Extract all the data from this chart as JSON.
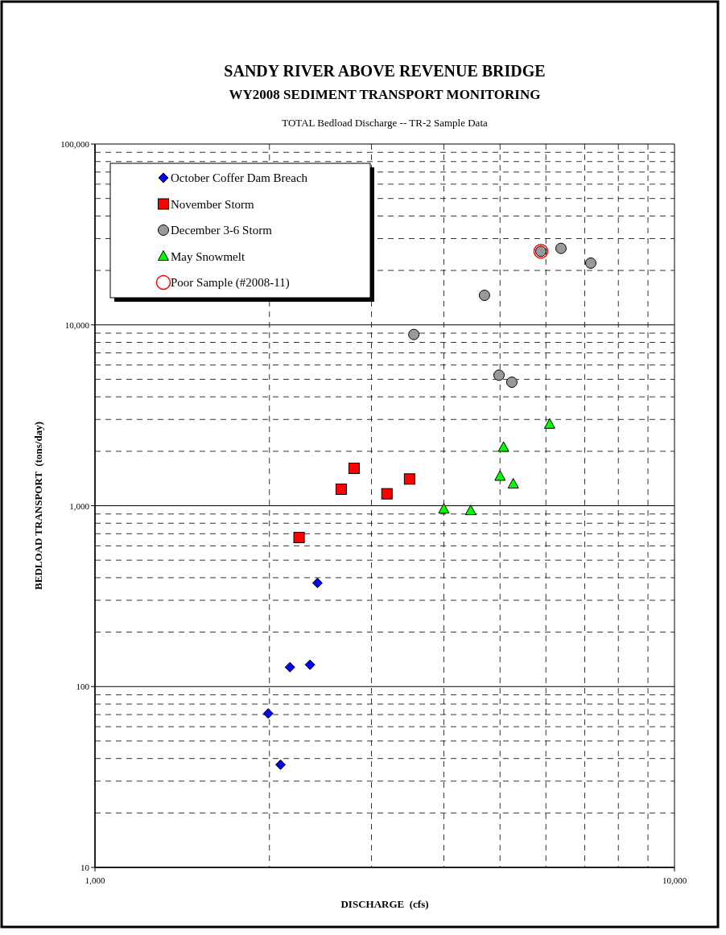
{
  "chart_data": {
    "type": "scatter",
    "title": "SANDY RIVER ABOVE REVENUE BRIDGE",
    "subtitle": "WY2008 SEDIMENT TRANSPORT MONITORING",
    "annotations": [
      "TOTAL Bedload Discharge -- TR-2 Sample Data"
    ],
    "xlabel": "DISCHARGE  (cfs)",
    "ylabel": "BEDLOAD TRANSPORT  (tons/day)",
    "log": "xy",
    "grid": true,
    "legend": "top left",
    "xlim": [
      1000,
      10000
    ],
    "xticks": [
      {
        "value": 1000,
        "label": "1,000"
      },
      {
        "value": 10000,
        "label": "10,000"
      }
    ],
    "ylim": [
      10,
      100000
    ],
    "yticks": [
      10,
      100,
      {
        "value": 1000,
        "label": "1,000"
      },
      {
        "value": 10000,
        "label": "10,000"
      },
      {
        "value": 100000,
        "label": "100,000"
      }
    ],
    "series": [
      {
        "name": "October Coffer Dam Breach",
        "color": "#0000ff",
        "marker": "diamond",
        "x": [
          1990,
          2090,
          2170,
          2350,
          2420
        ],
        "values": [
          71,
          37,
          128,
          132,
          374
        ]
      },
      {
        "name": "November Storm",
        "color": "#ff0000",
        "marker": "square",
        "x": [
          2250,
          2660,
          2800,
          3190,
          3490
        ],
        "values": [
          667,
          1234,
          1610,
          1164,
          1405
        ]
      },
      {
        "name": "December 3-6 Storm",
        "color": "#999999",
        "marker": "circle",
        "x": [
          3550,
          4700,
          4980,
          5240,
          5880,
          6370,
          7170
        ],
        "values": [
          8850,
          14570,
          5270,
          4820,
          25520,
          26490,
          21960
        ]
      },
      {
        "name": "May Snowmelt",
        "color": "#00ff00",
        "marker": "triangle",
        "x": [
          4000,
          4450,
          5000,
          5270,
          5070,
          6090
        ],
        "values": [
          958,
          939,
          1454,
          1317,
          2102,
          2820
        ]
      },
      {
        "name": "Poor Sample (#2008-11)",
        "color": "#ff0000",
        "marker": "circle-open",
        "x": [
          5880
        ],
        "values": [
          25520
        ]
      }
    ]
  }
}
